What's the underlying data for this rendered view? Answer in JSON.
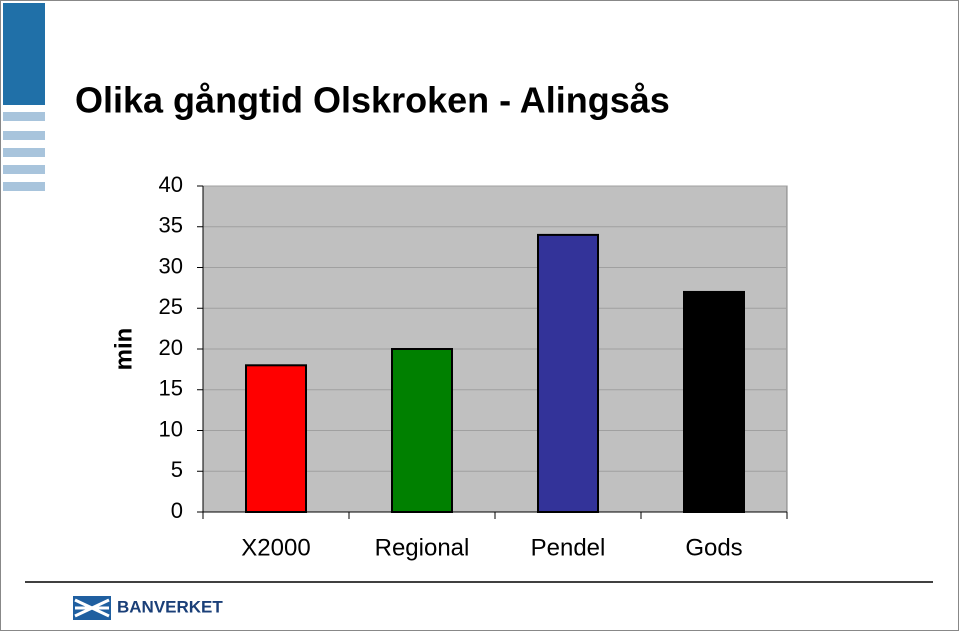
{
  "chart_data": {
    "type": "bar",
    "title": "Olika gångtid Olskroken - Alingsås",
    "y_label": "min",
    "categories": [
      "X2000",
      "Regional",
      "Pendel",
      "Gods"
    ],
    "values": [
      18,
      20,
      34,
      27
    ],
    "colors": [
      "#ff0000",
      "#008000",
      "#333399",
      "#000000"
    ],
    "ylim": [
      0,
      40
    ],
    "yticks": [
      0,
      5,
      10,
      15,
      20,
      25,
      30,
      35,
      40
    ],
    "grid": true
  },
  "logo_text": "BANVERKET"
}
